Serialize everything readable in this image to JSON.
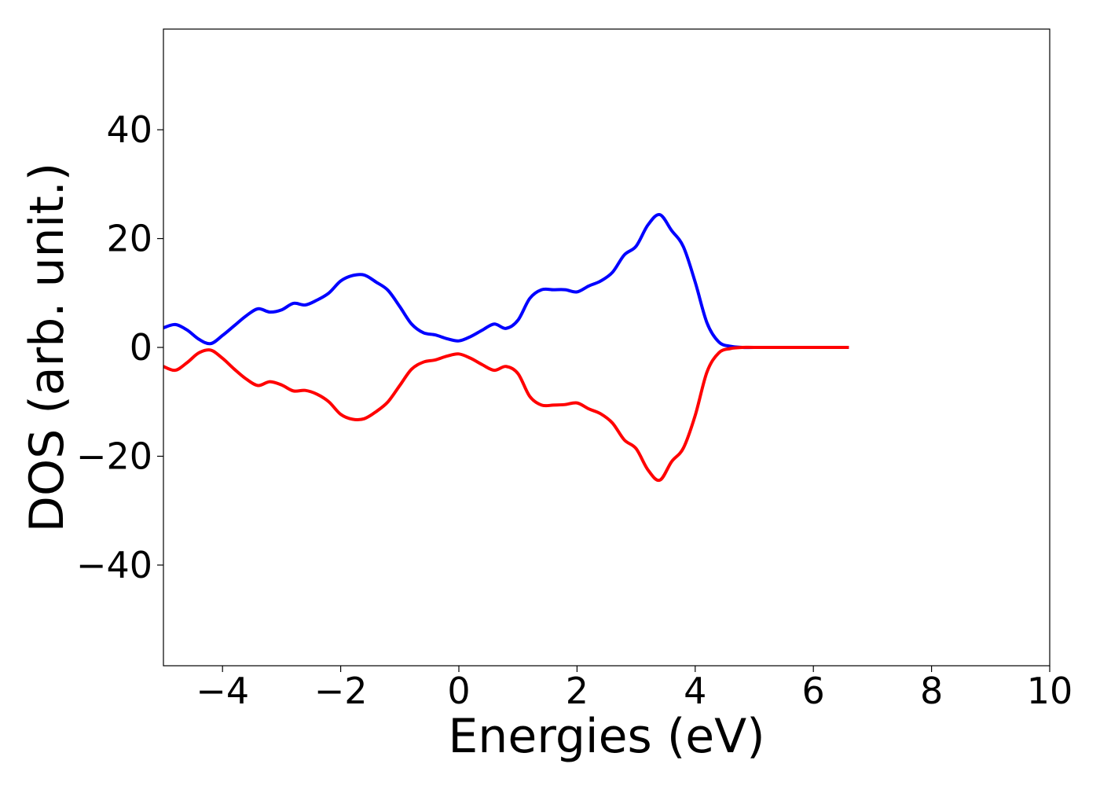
{
  "chart_data": {
    "type": "line",
    "title": "",
    "xlabel": "Energies (eV)",
    "ylabel": "DOS (arb. unit.)",
    "xlim": [
      -5,
      10
    ],
    "ylim": [
      -58.5,
      58.5
    ],
    "xticks": [
      -4,
      -2,
      0,
      2,
      4,
      6,
      8,
      10
    ],
    "xtick_labels": [
      "−4",
      "−2",
      "0",
      "2",
      "4",
      "6",
      "8",
      "10"
    ],
    "yticks": [
      -40,
      -20,
      0,
      20,
      40
    ],
    "ytick_labels": [
      "−40",
      "−20",
      "0",
      "20",
      "40"
    ],
    "grid": false,
    "legend": "none",
    "series": [
      {
        "color": "#0000ff",
        "x": [
          -5.0,
          -4.8,
          -4.6,
          -4.4,
          -4.2,
          -4.0,
          -3.8,
          -3.6,
          -3.4,
          -3.2,
          -3.0,
          -2.8,
          -2.6,
          -2.4,
          -2.2,
          -2.0,
          -1.8,
          -1.6,
          -1.4,
          -1.2,
          -1.0,
          -0.8,
          -0.6,
          -0.4,
          -0.2,
          0.0,
          0.2,
          0.4,
          0.6,
          0.8,
          1.0,
          1.2,
          1.4,
          1.6,
          1.8,
          2.0,
          2.2,
          2.4,
          2.6,
          2.8,
          3.0,
          3.2,
          3.4,
          3.6,
          3.8,
          4.0,
          4.2,
          4.4,
          4.6,
          4.8,
          5.0,
          5.5,
          6.0,
          6.6
        ],
        "y": [
          3.6,
          4.2,
          3.2,
          1.5,
          0.7,
          2.2,
          4.0,
          5.8,
          7.1,
          6.5,
          6.9,
          8.1,
          7.8,
          8.7,
          10.0,
          12.2,
          13.2,
          13.3,
          12.0,
          10.5,
          7.5,
          4.3,
          2.7,
          2.3,
          1.6,
          1.2,
          2.0,
          3.2,
          4.3,
          3.5,
          5.0,
          9.0,
          10.6,
          10.6,
          10.6,
          10.2,
          11.3,
          12.2,
          13.8,
          17.0,
          18.6,
          22.5,
          24.4,
          21.5,
          18.5,
          12.0,
          4.5,
          1.0,
          0.2,
          0.0,
          0.0,
          0.0,
          0.0,
          0.0
        ]
      },
      {
        "color": "#ff0000",
        "x": [
          -5.0,
          -4.8,
          -4.6,
          -4.4,
          -4.2,
          -4.0,
          -3.8,
          -3.6,
          -3.4,
          -3.2,
          -3.0,
          -2.8,
          -2.6,
          -2.4,
          -2.2,
          -2.0,
          -1.8,
          -1.6,
          -1.4,
          -1.2,
          -1.0,
          -0.8,
          -0.6,
          -0.4,
          -0.2,
          0.0,
          0.2,
          0.4,
          0.6,
          0.8,
          1.0,
          1.2,
          1.4,
          1.6,
          1.8,
          2.0,
          2.2,
          2.4,
          2.6,
          2.8,
          3.0,
          3.2,
          3.4,
          3.6,
          3.8,
          4.0,
          4.2,
          4.4,
          4.6,
          4.8,
          5.0,
          5.5,
          6.0,
          6.6
        ],
        "y": [
          -3.5,
          -4.2,
          -2.8,
          -1.0,
          -0.5,
          -2.0,
          -4.0,
          -5.8,
          -7.0,
          -6.3,
          -6.9,
          -8.0,
          -7.9,
          -8.6,
          -10.0,
          -12.3,
          -13.2,
          -13.1,
          -11.8,
          -10.0,
          -7.0,
          -4.0,
          -2.7,
          -2.3,
          -1.6,
          -1.2,
          -2.0,
          -3.2,
          -4.2,
          -3.5,
          -4.8,
          -9.0,
          -10.6,
          -10.6,
          -10.5,
          -10.2,
          -11.3,
          -12.2,
          -13.9,
          -17.0,
          -18.6,
          -22.5,
          -24.4,
          -21.0,
          -18.5,
          -12.5,
          -4.5,
          -1.0,
          -0.2,
          0.0,
          0.0,
          0.0,
          0.0,
          0.0
        ]
      }
    ]
  }
}
